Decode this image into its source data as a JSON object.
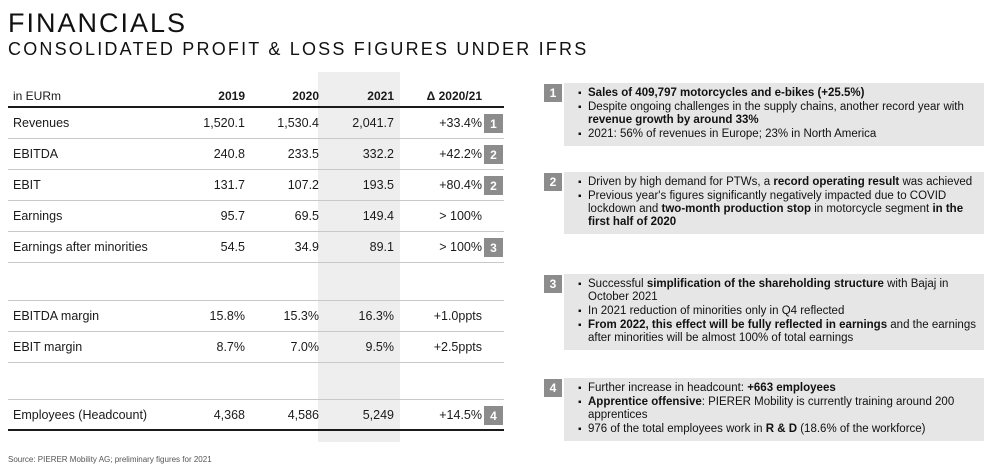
{
  "title": "FINANCIALS",
  "subtitle": "CONSOLIDATED PROFIT & LOSS FIGURES UNDER IFRS",
  "table": {
    "headers": [
      "in EURm",
      "2019",
      "2020",
      "2021",
      "Δ 2020/21"
    ],
    "rows": [
      {
        "label": "Revenues",
        "v2019": "1,520.1",
        "v2020": "1,530.4",
        "v2021": "2,041.7",
        "delta": "+33.4%",
        "badge": "1"
      },
      {
        "label": "EBITDA",
        "v2019": "240.8",
        "v2020": "233.5",
        "v2021": "332.2",
        "delta": "+42.2%",
        "badge": "2"
      },
      {
        "label": "EBIT",
        "v2019": "131.7",
        "v2020": "107.2",
        "v2021": "193.5",
        "delta": "+80.4%",
        "badge": "2"
      },
      {
        "label": "Earnings",
        "v2019": "95.7",
        "v2020": "69.5",
        "v2021": "149.4",
        "delta": "> 100%",
        "badge": ""
      },
      {
        "label": "Earnings after minorities",
        "v2019": "54.5",
        "v2020": "34.9",
        "v2021": "89.1",
        "delta": "> 100%",
        "badge": "3"
      },
      {
        "label": "EBITDA margin",
        "v2019": "15.8%",
        "v2020": "15.3%",
        "v2021": "16.3%",
        "delta": "+1.0ppts",
        "badge": ""
      },
      {
        "label": "EBIT margin",
        "v2019": "8.7%",
        "v2020": "7.0%",
        "v2021": "9.5%",
        "delta": "+2.5ppts",
        "badge": ""
      },
      {
        "label": "Employees (Headcount)",
        "v2019": "4,368",
        "v2020": "4,586",
        "v2021": "5,249",
        "delta": "+14.5%",
        "badge": "4"
      }
    ]
  },
  "panels": [
    {
      "badge": "1",
      "bullets": [
        [
          {
            "t": "Sales of 409,797 motorcycles and e-bikes (+25.5%)",
            "b": true
          }
        ],
        [
          {
            "t": "Despite ongoing challenges in the supply chains, another record year with ",
            "b": false
          },
          {
            "t": "revenue growth by around 33%",
            "b": true
          }
        ],
        [
          {
            "t": "2021: 56% of revenues in Europe; 23% in North America",
            "b": false
          }
        ]
      ]
    },
    {
      "badge": "2",
      "bullets": [
        [
          {
            "t": "Driven by high demand for PTWs, a ",
            "b": false
          },
          {
            "t": "record operating result",
            "b": true
          },
          {
            "t": " was achieved",
            "b": false
          }
        ],
        [
          {
            "t": "Previous year's figures significantly negatively impacted due to COVID lockdown and ",
            "b": false
          },
          {
            "t": "two-month production stop",
            "b": true
          },
          {
            "t": " in motorcycle segment ",
            "b": false
          },
          {
            "t": "in the first half of 2020",
            "b": true
          }
        ]
      ]
    },
    {
      "badge": "3",
      "bullets": [
        [
          {
            "t": "Successful ",
            "b": false
          },
          {
            "t": "simplification of the shareholding structure",
            "b": true
          },
          {
            "t": " with Bajaj in October 2021",
            "b": false
          }
        ],
        [
          {
            "t": "In 2021 reduction of minorities only in Q4 reflected",
            "b": false
          }
        ],
        [
          {
            "t": "From 2022, this ",
            "b": true
          },
          {
            "t": "effect will be fully reflected in earnings",
            "b": true
          },
          {
            "t": " and the earnings after minorities will be almost 100% of total earnings",
            "b": false
          }
        ]
      ]
    },
    {
      "badge": "4",
      "bullets": [
        [
          {
            "t": "Further increase in headcount: ",
            "b": false
          },
          {
            "t": "+663 employees",
            "b": true
          }
        ],
        [
          {
            "t": "Apprentice offensive",
            "b": true
          },
          {
            "t": ": PIERER Mobility is currently training around 200 apprentices",
            "b": false
          }
        ],
        [
          {
            "t": "976 of the total employees work in ",
            "b": false
          },
          {
            "t": "R & D",
            "b": true
          },
          {
            "t": " (18.6% of the workforce)",
            "b": false
          }
        ]
      ]
    }
  ],
  "source": "Source: PIERER Mobility AG; preliminary figures for 2021"
}
